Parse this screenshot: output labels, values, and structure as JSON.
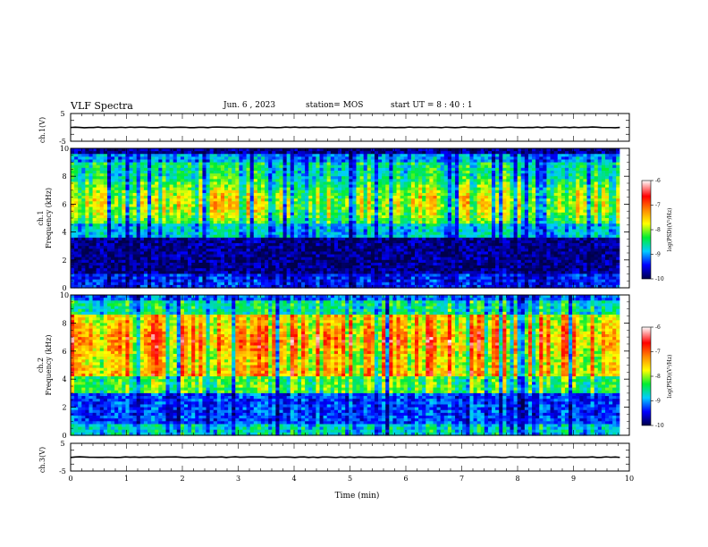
{
  "header": {
    "title": "VLF Spectra",
    "date": "Jun. 6  , 2023",
    "station": "station= MOS",
    "start": "start  UT =   8  : 40 : 1"
  },
  "chart_data": [
    {
      "type": "line",
      "name": "ch1-waveform",
      "ylabel": "ch.1(V)",
      "ylim": [
        -5,
        5
      ],
      "yticks": [
        "5",
        "-5"
      ],
      "x": [
        0,
        9.83
      ],
      "y": [
        0,
        0
      ]
    },
    {
      "type": "heatmap",
      "name": "ch1-spectrogram",
      "ylabel_top": "ch.1",
      "ylabel": "Frequency (kHz)",
      "ylim": [
        0,
        10
      ],
      "yticks": [
        "0",
        "2",
        "4",
        "6",
        "8",
        "10"
      ],
      "xlim": [
        0,
        10
      ],
      "data_end_x": 9.83,
      "colorbar": {
        "label": "log(PSD)(V²/Hz)",
        "ticks": [
          "-6",
          "-7",
          "-8",
          "-9",
          "-10"
        ],
        "range": [
          -10,
          -6
        ]
      },
      "profile_note": "intense -7 to -6 broadband emission 4.5-9 kHz; weak -10 band 1-3.5 kHz; narrowband lines below 2 kHz"
    },
    {
      "type": "heatmap",
      "name": "ch2-spectrogram",
      "ylabel_top": "ch.2",
      "ylabel": "Frequency (kHz)",
      "ylim": [
        0,
        10
      ],
      "yticks": [
        "0",
        "2",
        "4",
        "6",
        "8",
        "10"
      ],
      "xlim": [
        0,
        10
      ],
      "data_end_x": 9.83,
      "colorbar": {
        "label": "log(PSD)(V²/Hz)",
        "ticks": [
          "-6",
          "-7",
          "-8",
          "-9",
          "-10"
        ],
        "range": [
          -10,
          -6
        ]
      },
      "profile_note": "strong -6.5 to -6 emission 4-8.5 kHz; -8 to -9 band 1-3 kHz"
    },
    {
      "type": "line",
      "name": "ch3-waveform",
      "ylabel": "ch.3(V)",
      "ylim": [
        -5,
        5
      ],
      "yticks": [
        "5",
        "-5"
      ],
      "x": [
        0,
        9.83
      ],
      "y": [
        0,
        0
      ]
    }
  ],
  "xaxis": {
    "label": "Time  (min)",
    "ticks": [
      "0",
      "1",
      "2",
      "3",
      "4",
      "5",
      "6",
      "7",
      "8",
      "9",
      "10"
    ],
    "range": [
      0,
      10
    ]
  },
  "colors": {
    "colormap": [
      "#00004a",
      "#0000ff",
      "#00ccff",
      "#00ee33",
      "#ffff00",
      "#ff8800",
      "#ff0000",
      "#ffffff"
    ]
  }
}
